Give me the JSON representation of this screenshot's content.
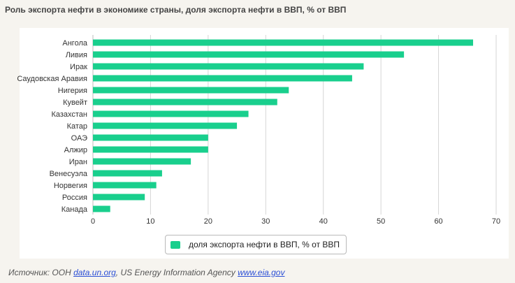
{
  "title": "Роль экспорта нефти в экономике страны, доля экспорта нефти в ВВП, % от ВВП",
  "colors": {
    "bar": "#19cf8d",
    "grid": "#d6d6d6",
    "background": "#f6f4ef"
  },
  "chart_data": {
    "type": "bar",
    "orientation": "horizontal",
    "categories": [
      "Ангола",
      "Ливия",
      "Ирак",
      "Саудовская Аравия",
      "Нигерия",
      "Кувейт",
      "Казахстан",
      "Катар",
      "ОАЭ",
      "Алжир",
      "Иран",
      "Венесуэла",
      "Норвегия",
      "Россия",
      "Канада"
    ],
    "series": [
      {
        "name": "доля экспорта нефти в ВВП, % от ВВП",
        "values": [
          66,
          54,
          47,
          45,
          34,
          32,
          27,
          25,
          20,
          20,
          17,
          12,
          11,
          9,
          3
        ]
      }
    ],
    "xlim": [
      0,
      70
    ],
    "xticks": [
      "0",
      "10",
      "20",
      "30",
      "40",
      "50",
      "60",
      "70"
    ],
    "grid": "vertical",
    "legend_position": "bottom-center"
  },
  "legend": {
    "label": "доля экспорта нефти в ВВП, % от ВВП"
  },
  "source": {
    "prefix": "Источник: ООН ",
    "link1": "data.un.org",
    "middle": ", US Energy Information Agency ",
    "link2": "www.eia.gov"
  }
}
